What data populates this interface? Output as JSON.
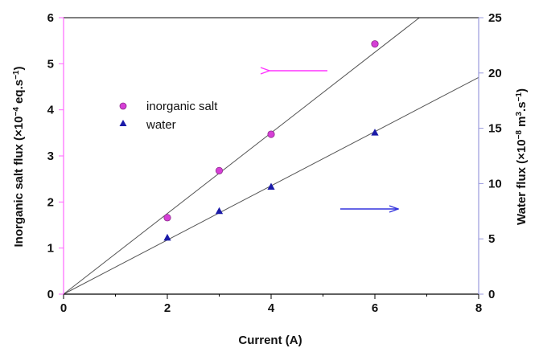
{
  "chart_data": {
    "type": "scatter",
    "xlabel": "Current (A)",
    "ylabel_left": {
      "main": "Inorganic salt flux (×10",
      "sup": "−4",
      "tail": " eq.s",
      "sup2": "−1",
      "end": ")"
    },
    "ylabel_right": {
      "main": "Water flux (×10",
      "sup": "−8",
      "mid": " m",
      "sup2": "3",
      "mid2": ".s",
      "sup3": "−1",
      "end": ")"
    },
    "xlim": [
      0,
      8
    ],
    "ylim_left": [
      0,
      6
    ],
    "ylim_right": [
      0,
      25
    ],
    "x_ticks": [
      0,
      2,
      4,
      6,
      8
    ],
    "x_minor_ticks": [
      1,
      3,
      5,
      7
    ],
    "y_left_ticks": [
      0,
      1,
      2,
      3,
      4,
      5,
      6
    ],
    "y_right_ticks": [
      0,
      5,
      10,
      15,
      20,
      25
    ],
    "series": [
      {
        "name": "inorganic salt",
        "axis": "left",
        "marker": "circle",
        "color": "#d63fd6",
        "x": [
          2,
          3,
          4,
          6
        ],
        "y": [
          1.66,
          2.68,
          3.47,
          5.43
        ]
      },
      {
        "name": "water",
        "axis": "right",
        "marker": "triangle",
        "color": "#1a1aa8",
        "x": [
          2,
          3,
          4,
          6
        ],
        "y": [
          5.1,
          7.5,
          9.7,
          14.6
        ]
      }
    ],
    "fit_lines": [
      {
        "axis": "left",
        "slope": 0.875,
        "color": "#555555"
      },
      {
        "axis": "right",
        "slope": 2.45,
        "color": "#555555"
      }
    ],
    "annotations": [
      {
        "type": "arrow",
        "direction": "left",
        "color": "#ff33ff",
        "refers_to": "left axis"
      },
      {
        "type": "arrow",
        "direction": "right",
        "color": "#3333dd",
        "refers_to": "right axis"
      }
    ],
    "axis_colors": {
      "left": "#ff66ff",
      "right": "#9999dd",
      "frame": "#000000"
    },
    "legend_position": "upper-left",
    "grid": false
  }
}
